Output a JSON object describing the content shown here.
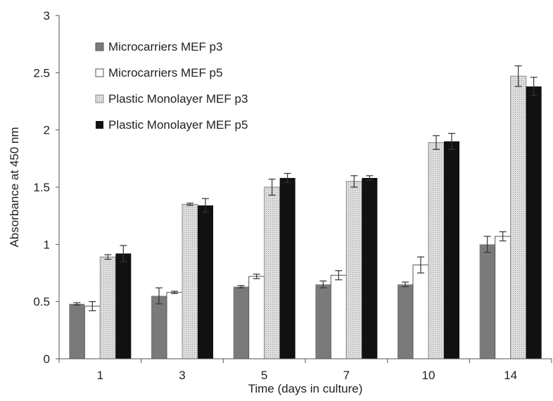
{
  "chart_data": {
    "type": "bar",
    "title": "",
    "xlabel": "Time (days in culture)",
    "ylabel": "Absorbance at 450 nm",
    "ylim": [
      0,
      3
    ],
    "yticks": [
      "0",
      "0.5",
      "1",
      "1.5",
      "2",
      "2.5",
      "3"
    ],
    "categories": [
      "1",
      "3",
      "5",
      "7",
      "10",
      "14"
    ],
    "grid": false,
    "legend_position": "top-left",
    "series": [
      {
        "name": "Microcarriers MEF p3",
        "color": "#7a7a7a",
        "fill": "solid",
        "values": [
          0.48,
          0.55,
          0.63,
          0.65,
          0.65,
          1.0
        ],
        "errors": [
          0.01,
          0.07,
          0.01,
          0.03,
          0.02,
          0.07
        ]
      },
      {
        "name": "Microcarriers MEF p5",
        "color": "#ffffff",
        "fill": "outline",
        "values": [
          0.46,
          0.58,
          0.72,
          0.73,
          0.82,
          1.07
        ],
        "errors": [
          0.04,
          0.01,
          0.02,
          0.04,
          0.07,
          0.04
        ]
      },
      {
        "name": "Plastic Monolayer MEF p3",
        "color": "#cfcfcf",
        "fill": "dotted",
        "values": [
          0.89,
          1.35,
          1.5,
          1.55,
          1.89,
          2.47
        ],
        "errors": [
          0.02,
          0.01,
          0.07,
          0.05,
          0.06,
          0.09
        ]
      },
      {
        "name": "Plastic Monolayer MEF p5",
        "color": "#111111",
        "fill": "solid",
        "values": [
          0.92,
          1.34,
          1.58,
          1.58,
          1.9,
          2.38
        ],
        "errors": [
          0.07,
          0.06,
          0.04,
          0.02,
          0.07,
          0.08
        ]
      }
    ]
  }
}
